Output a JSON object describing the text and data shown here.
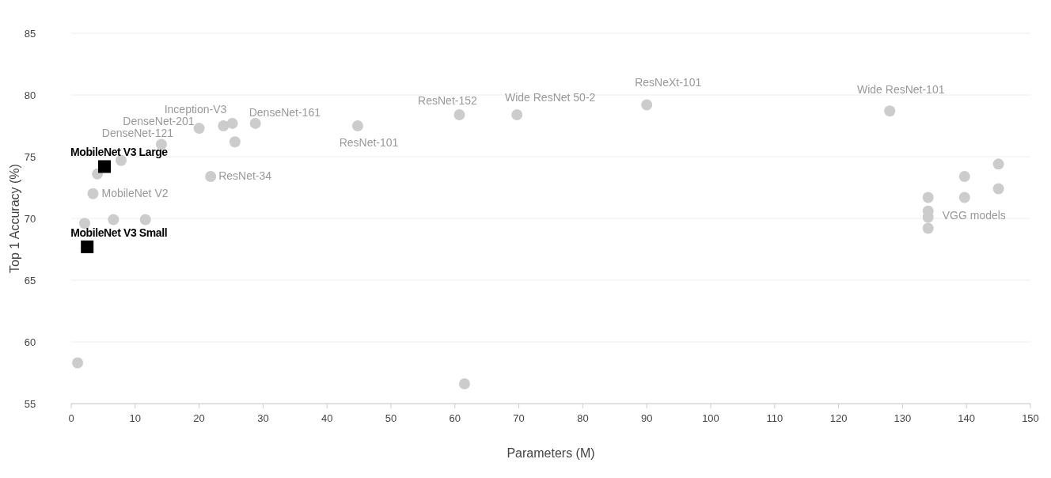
{
  "chart_data": {
    "type": "scatter",
    "xlabel": "Parameters (M)",
    "ylabel": "Top 1 Accuracy (%)",
    "xlim": [
      0,
      150
    ],
    "ylim": [
      55,
      85
    ],
    "xticks": [
      0,
      10,
      20,
      30,
      40,
      50,
      60,
      70,
      80,
      90,
      100,
      110,
      120,
      130,
      140,
      150
    ],
    "yticks": [
      55,
      60,
      65,
      70,
      75,
      80,
      85
    ],
    "grid": "y",
    "series": [
      {
        "color": "#cccccc",
        "marker": "circle",
        "x": [
          1.0,
          61.5,
          2.1,
          6.6,
          11.6,
          3.4,
          4.1,
          7.8,
          14.1,
          20.0,
          23.8,
          25.2,
          25.6,
          28.8,
          21.8,
          44.8,
          60.7,
          69.7,
          90.0,
          128,
          134,
          134,
          134,
          134,
          139.7,
          139.7,
          145,
          145
        ],
        "values": [
          58.3,
          56.6,
          69.6,
          69.9,
          69.9,
          72.0,
          73.6,
          74.7,
          76.0,
          77.3,
          77.5,
          77.7,
          76.2,
          77.7,
          73.4,
          77.5,
          78.4,
          78.4,
          79.2,
          78.7,
          71.7,
          70.6,
          70.1,
          69.2,
          73.4,
          71.7,
          74.4,
          72.4
        ]
      },
      {
        "color": "#000000",
        "marker": "square",
        "x": [
          5.2,
          2.5
        ],
        "values": [
          74.2,
          67.7
        ]
      }
    ],
    "annotations": [
      {
        "text": "MobileNet V3 Large",
        "x": 5.2,
        "y": 74.2
      },
      {
        "text": "MobileNet V3 Small",
        "x": 2.5,
        "y": 67.7
      },
      {
        "text": "MobileNet V2",
        "x": 3.4,
        "y": 72.0
      },
      {
        "text": "DenseNet-121",
        "x": 14.1,
        "y": 76.0
      },
      {
        "text": "DenseNet-201",
        "x": 20.0,
        "y": 77.3
      },
      {
        "text": "Inception-V3",
        "x": 23.8,
        "y": 77.5
      },
      {
        "text": "DenseNet-161",
        "x": 28.8,
        "y": 77.7
      },
      {
        "text": "ResNet-34",
        "x": 21.8,
        "y": 73.4
      },
      {
        "text": "ResNet-101",
        "x": 44.8,
        "y": 77.5
      },
      {
        "text": "ResNet-152",
        "x": 60.7,
        "y": 78.4
      },
      {
        "text": "Wide ResNet 50-2",
        "x": 69.7,
        "y": 78.4
      },
      {
        "text": "ResNeXt-101",
        "x": 90.0,
        "y": 79.2
      },
      {
        "text": "Wide ResNet-101",
        "x": 128,
        "y": 78.7
      },
      {
        "text": "VGG models",
        "x": 134,
        "y": 70.1
      }
    ]
  }
}
